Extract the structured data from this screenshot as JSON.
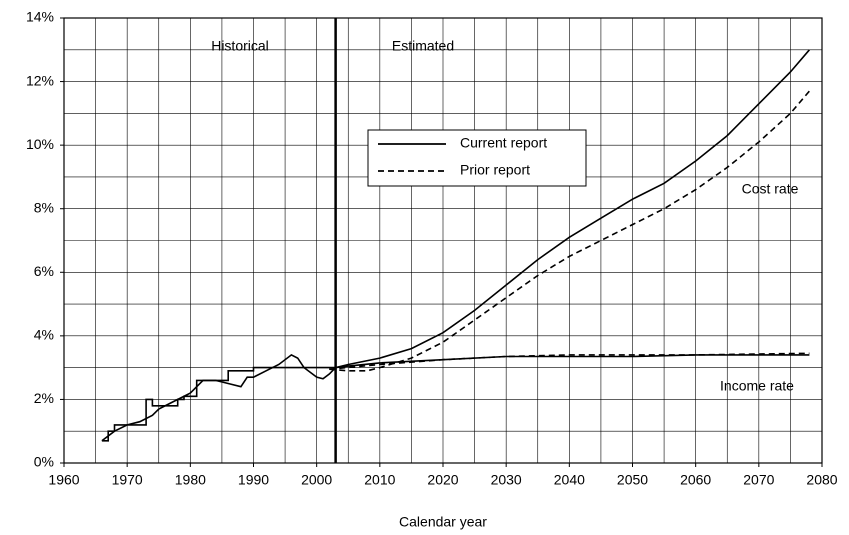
{
  "chart_data": {
    "type": "line",
    "xlabel": "Calendar year",
    "xlim": [
      1960,
      2080
    ],
    "ylim": [
      0,
      14
    ],
    "xticks": [
      1960,
      1970,
      1980,
      1990,
      2000,
      2010,
      2020,
      2030,
      2040,
      2050,
      2060,
      2070,
      2080
    ],
    "yticks": [
      {
        "value": 0,
        "label": "0%"
      },
      {
        "value": 2,
        "label": "2%"
      },
      {
        "value": 4,
        "label": "4%"
      },
      {
        "value": 6,
        "label": "6%"
      },
      {
        "value": 8,
        "label": "8%"
      },
      {
        "value": 10,
        "label": "10%"
      },
      {
        "value": 12,
        "label": "12%"
      },
      {
        "value": 14,
        "label": "14%"
      }
    ],
    "xgrid": [
      1960,
      1965,
      1970,
      1975,
      1980,
      1985,
      1990,
      1995,
      2000,
      2005,
      2010,
      2015,
      2020,
      2025,
      2030,
      2035,
      2040,
      2045,
      2050,
      2055,
      2060,
      2065,
      2070,
      2075,
      2080
    ],
    "ygrid": [
      0,
      1,
      2,
      3,
      4,
      5,
      6,
      7,
      8,
      9,
      10,
      11,
      12,
      13,
      14
    ],
    "grid": true,
    "divider_x": 2003,
    "period_labels": [
      "Historical",
      "Estimated"
    ],
    "annotations": [
      "Cost rate",
      "Income rate"
    ],
    "legend": "upper center",
    "series": [
      {
        "name": "Current report",
        "color": "#000000",
        "dash": false,
        "cost_x": [
          1966,
          1968,
          1970,
          1972,
          1974,
          1975,
          1977,
          1980,
          1982,
          1984,
          1986,
          1988,
          1989,
          1990,
          1992,
          1994,
          1996,
          1997,
          1998,
          2000,
          2001,
          2002,
          2003,
          2005,
          2010,
          2015,
          2020,
          2025,
          2030,
          2035,
          2040,
          2045,
          2050,
          2055,
          2060,
          2065,
          2070,
          2075,
          2078
        ],
        "cost": [
          0.7,
          1.0,
          1.2,
          1.3,
          1.5,
          1.7,
          1.9,
          2.2,
          2.6,
          2.6,
          2.5,
          2.4,
          2.7,
          2.7,
          2.9,
          3.1,
          3.4,
          3.3,
          3.0,
          2.7,
          2.65,
          2.8,
          3.0,
          3.1,
          3.3,
          3.6,
          4.1,
          4.8,
          5.6,
          6.4,
          7.1,
          7.7,
          8.3,
          8.8,
          9.5,
          10.3,
          11.3,
          12.3,
          13.0
        ],
        "income_x": [
          1966,
          1967,
          1967,
          1968,
          1968,
          1973,
          1973,
          1974,
          1974,
          1978,
          1978,
          1979,
          1979,
          1981,
          1981,
          1986,
          1986,
          1990,
          1990,
          2003,
          2005,
          2010,
          2020,
          2030,
          2040,
          2050,
          2060,
          2078
        ],
        "income": [
          0.7,
          0.7,
          1.0,
          1.0,
          1.2,
          1.2,
          2.0,
          2.0,
          1.8,
          1.8,
          2.0,
          2.0,
          2.1,
          2.1,
          2.6,
          2.6,
          2.9,
          2.9,
          3.0,
          3.0,
          3.05,
          3.15,
          3.25,
          3.35,
          3.35,
          3.35,
          3.4,
          3.4
        ]
      },
      {
        "name": "Prior report",
        "color": "#000000",
        "dash": true,
        "cost_x": [
          2002,
          2005,
          2008,
          2010,
          2015,
          2020,
          2025,
          2030,
          2035,
          2040,
          2045,
          2050,
          2055,
          2060,
          2065,
          2070,
          2075,
          2078
        ],
        "cost": [
          2.95,
          2.9,
          2.9,
          3.0,
          3.3,
          3.8,
          4.5,
          5.2,
          5.9,
          6.5,
          7.0,
          7.5,
          8.0,
          8.6,
          9.3,
          10.1,
          11.0,
          11.7
        ],
        "income_x": [
          2002,
          2010,
          2020,
          2030,
          2040,
          2060,
          2078
        ],
        "income": [
          2.95,
          3.1,
          3.25,
          3.35,
          3.4,
          3.4,
          3.45
        ]
      }
    ]
  }
}
